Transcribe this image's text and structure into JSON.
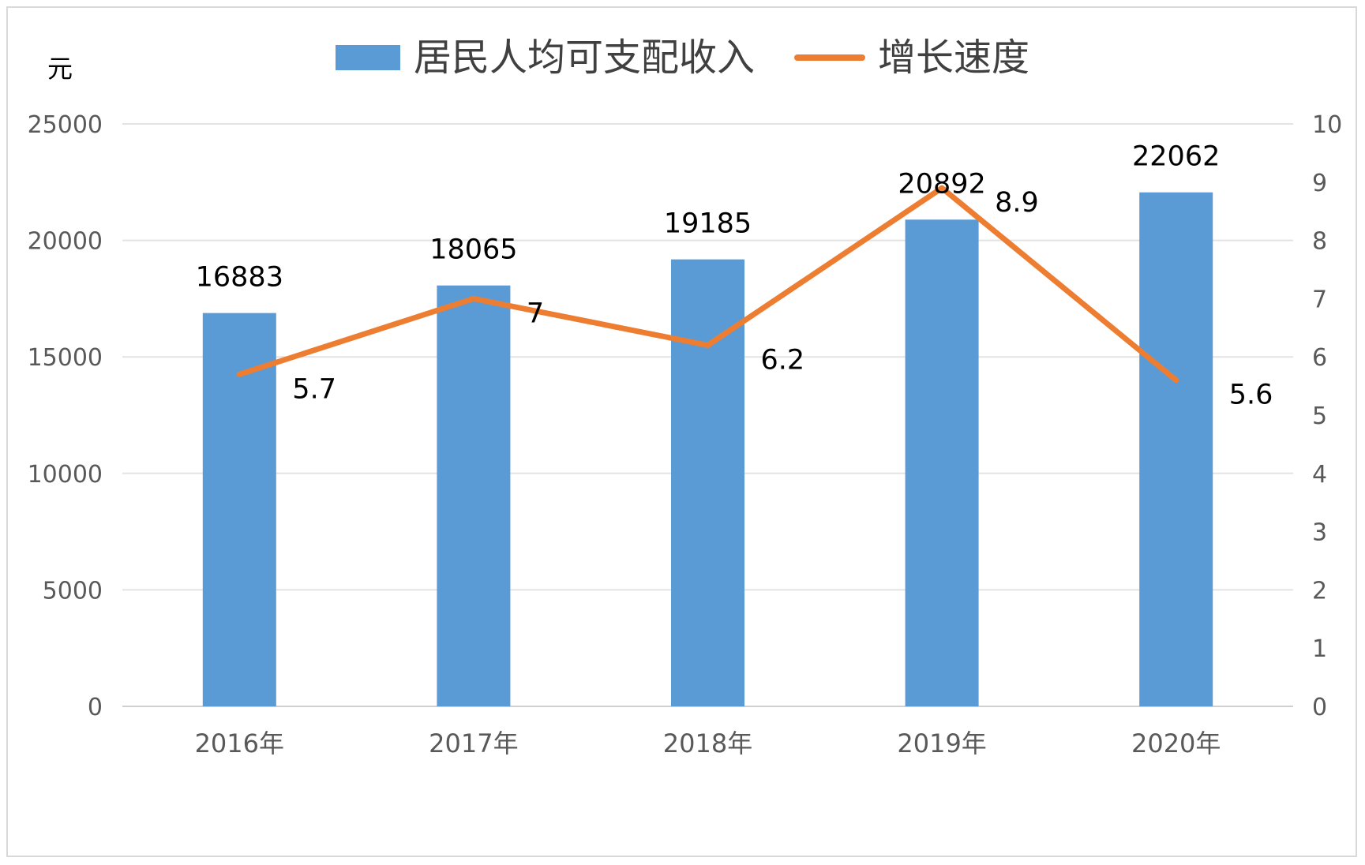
{
  "chart_data": {
    "type": "bar",
    "categories": [
      "2016年",
      "2017年",
      "2018年",
      "2019年",
      "2020年"
    ],
    "y_unit_label": "元",
    "ylim": [
      0,
      25000
    ],
    "y_ticks": [
      0,
      5000,
      10000,
      15000,
      20000,
      25000
    ],
    "y2lim": [
      0,
      10
    ],
    "y2_ticks": [
      0,
      1,
      2,
      3,
      4,
      5,
      6,
      7,
      8,
      9,
      10
    ],
    "grid": true,
    "legend_position": "top",
    "series": [
      {
        "name": "居民人均可支配收入",
        "type": "bar",
        "axis": "left",
        "color": "#5b9bd5",
        "values": [
          16883,
          18065,
          19185,
          20892,
          22062
        ]
      },
      {
        "name": "增长速度",
        "type": "line",
        "axis": "right",
        "color": "#ed7d31",
        "values": [
          5.7,
          7,
          6.2,
          8.9,
          5.6
        ]
      }
    ]
  }
}
